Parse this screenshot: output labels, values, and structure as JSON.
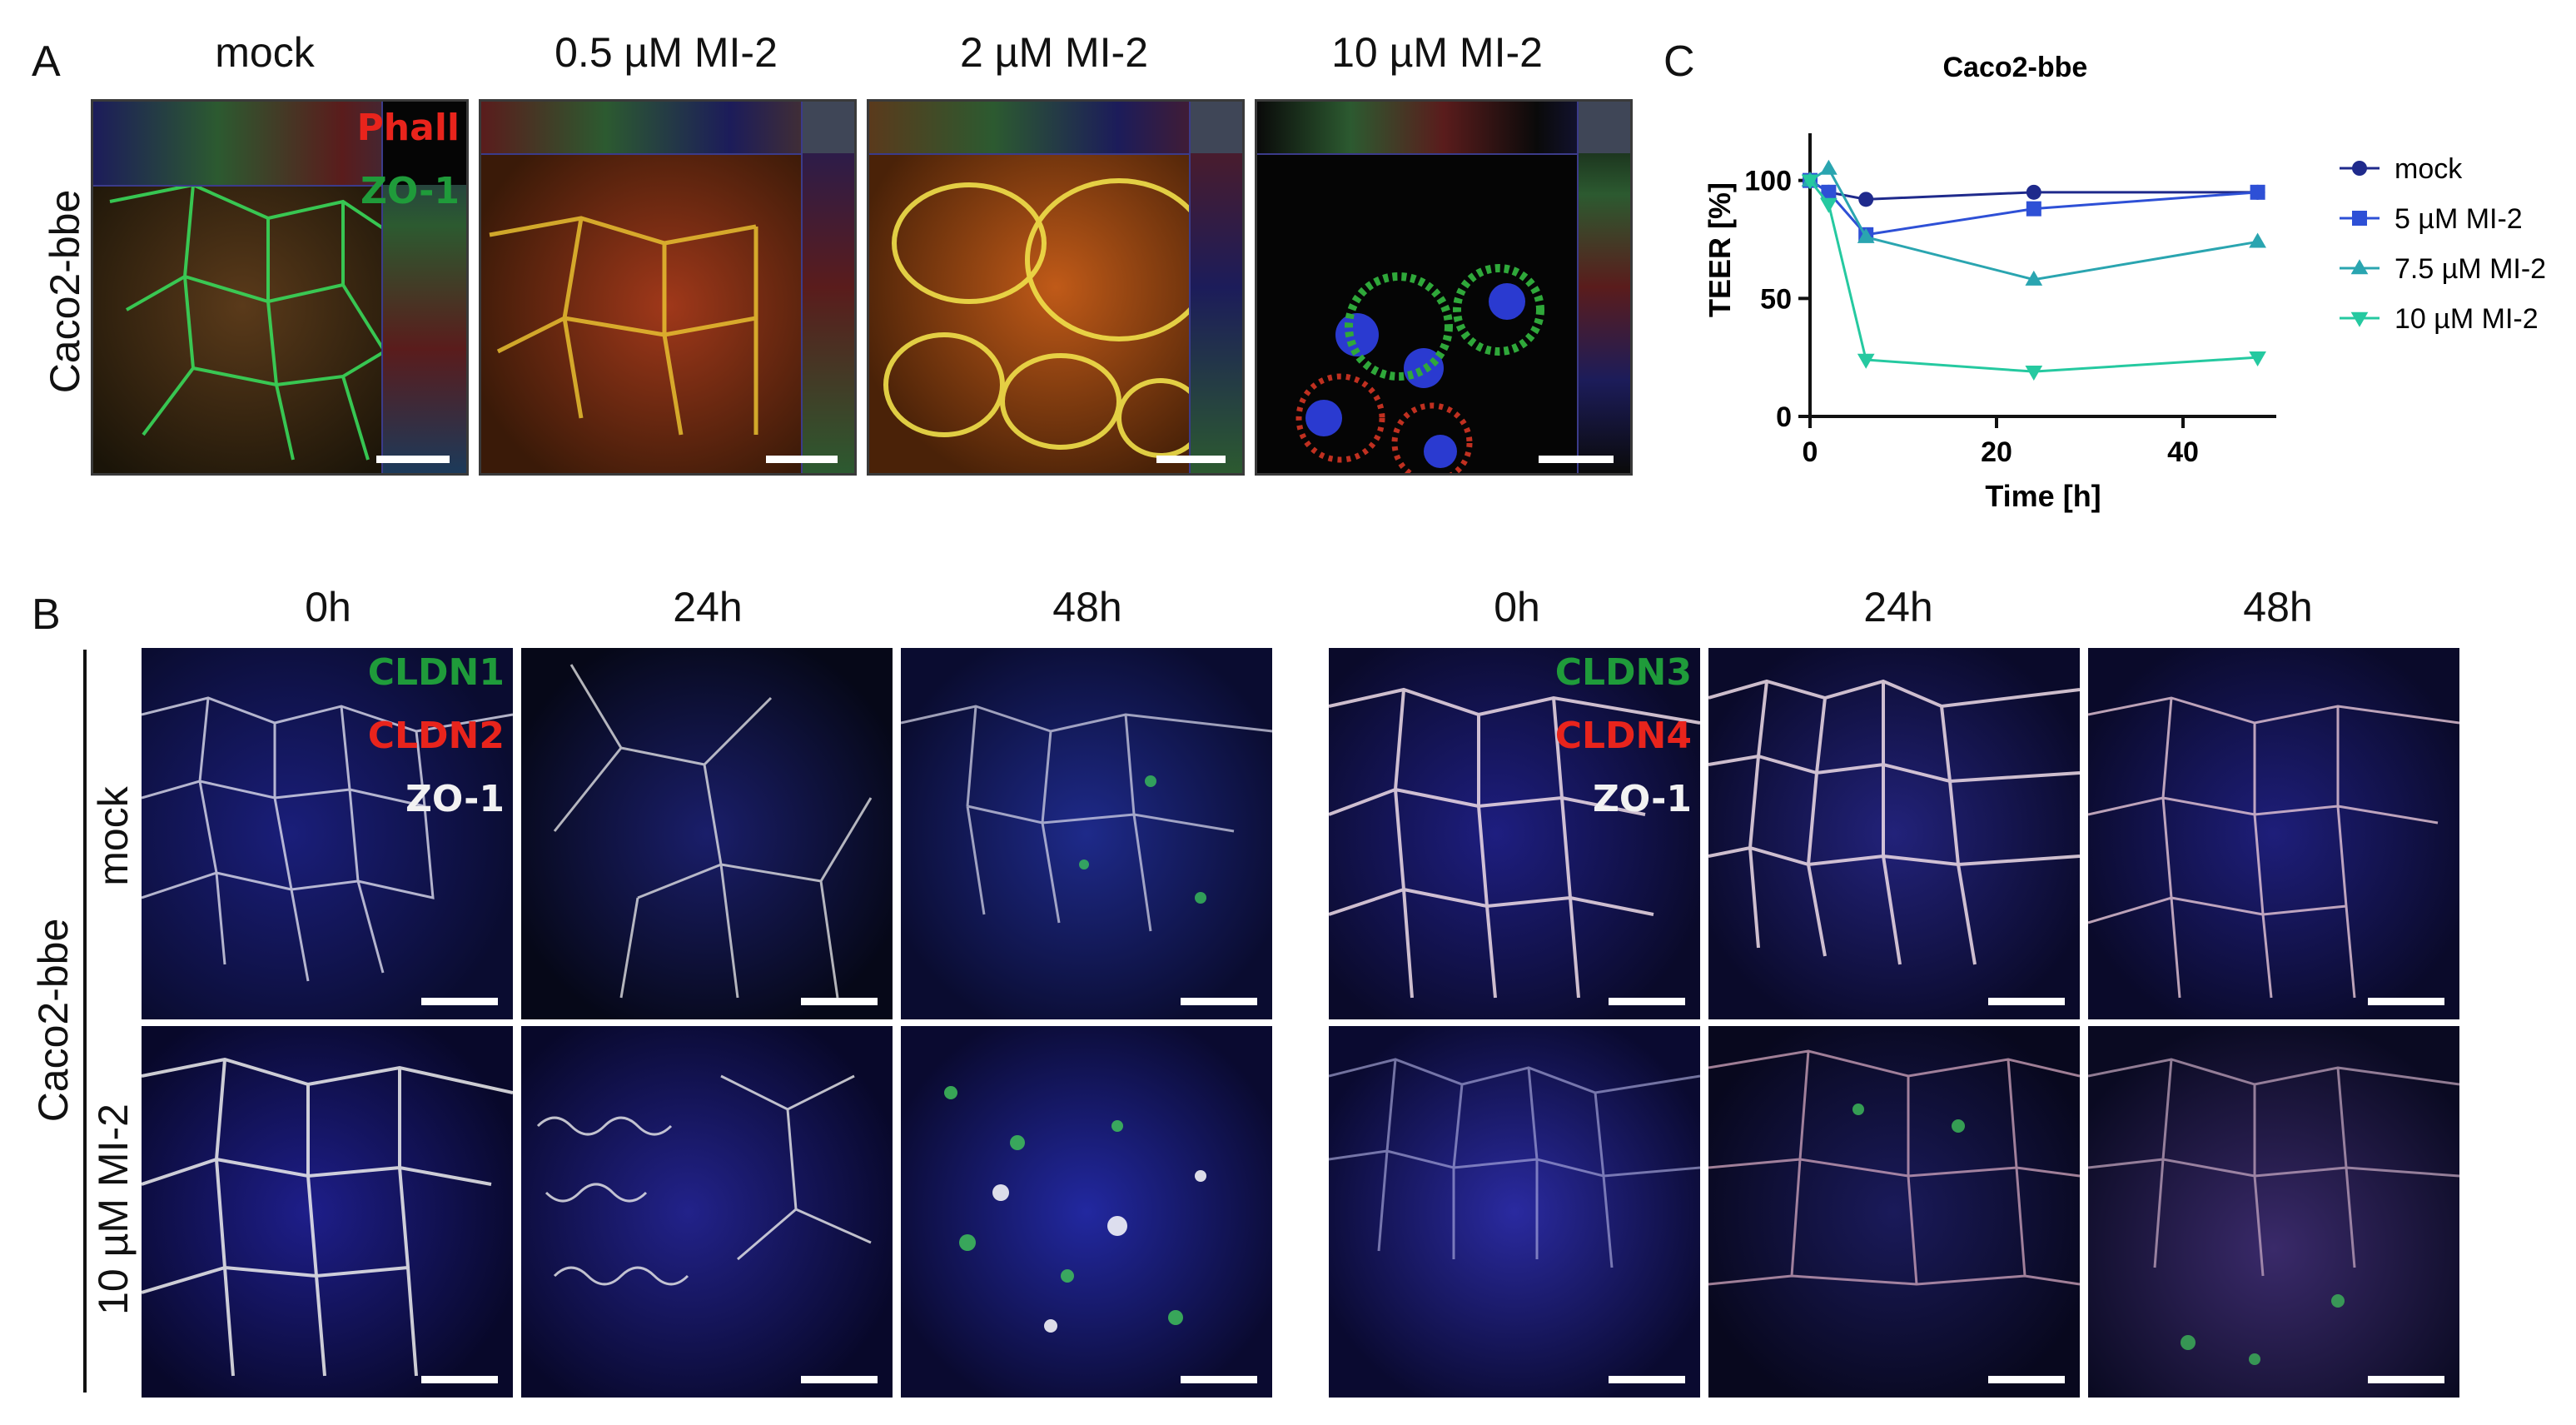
{
  "panel_letters": {
    "a": "A",
    "b": "B",
    "c": "C"
  },
  "panel_a": {
    "cell_line": "Caco2-bbe",
    "columns": [
      "mock",
      "0.5 µM MI-2",
      "2 µM MI-2",
      "10 µM MI-2"
    ],
    "stains": [
      {
        "text": "Phall",
        "color": "#e8241c"
      },
      {
        "text": "ZO-1",
        "color": "#1f9b3a"
      }
    ]
  },
  "panel_b": {
    "cell_line": "Caco2-bbe",
    "row_labels": [
      "mock",
      "10 µM MI-2"
    ],
    "time_points": [
      "0h",
      "24h",
      "48h"
    ],
    "left_group": {
      "stains": [
        {
          "text": "CLDN1",
          "color": "#1f9b3a"
        },
        {
          "text": "CLDN2",
          "color": "#e8241c"
        },
        {
          "text": "ZO-1",
          "color": "#f2f2f2"
        }
      ]
    },
    "right_group": {
      "stains": [
        {
          "text": "CLDN3",
          "color": "#1f9b3a"
        },
        {
          "text": "CLDN4",
          "color": "#e8241c"
        },
        {
          "text": "ZO-1",
          "color": "#f2f2f2"
        }
      ]
    }
  },
  "chart_data": {
    "type": "line",
    "title": "Caco2-bbe",
    "xlabel": "Time [h]",
    "ylabel": "TEER [%]",
    "xlim": [
      0,
      50
    ],
    "ylim": [
      0,
      120
    ],
    "xticks": [
      0,
      20,
      40
    ],
    "yticks": [
      0,
      50,
      100
    ],
    "grid": false,
    "legend_position": "right",
    "series": [
      {
        "name": "mock",
        "marker": "circle",
        "color": "#1f2a8c",
        "x": [
          0,
          2,
          6,
          24,
          48
        ],
        "y": [
          100,
          95,
          92,
          95,
          95
        ]
      },
      {
        "name": "5 µM MI-2",
        "marker": "square",
        "color": "#2e50d6",
        "x": [
          0,
          2,
          6,
          24,
          48
        ],
        "y": [
          100,
          95,
          77,
          88,
          95
        ]
      },
      {
        "name": "7.5 µM MI-2",
        "marker": "triangle-up",
        "color": "#2aa5b0",
        "x": [
          0,
          2,
          6,
          24,
          48
        ],
        "y": [
          100,
          105,
          76,
          58,
          74
        ]
      },
      {
        "name": "10 µM MI-2",
        "marker": "triangle-down",
        "color": "#25c9a0",
        "x": [
          0,
          2,
          6,
          24,
          48
        ],
        "y": [
          100,
          90,
          24,
          19,
          25
        ]
      }
    ]
  }
}
